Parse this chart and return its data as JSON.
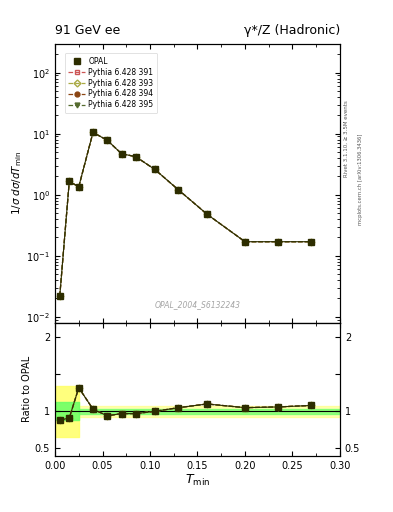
{
  "title_left": "91 GeV ee",
  "title_right": "γ*/Z (Hadronic)",
  "ylabel_main": "1/σ dσ/dT_{min}",
  "ylabel_ratio": "Ratio to OPAL",
  "xlabel": "T_{min}",
  "watermark": "OPAL_2004_S6132243",
  "right_label_top": "Rivet 3.1.10, ≥ 3.5M events",
  "right_label_bot": "mcplots.cern.ch [arXiv:1306.3436]",
  "x_data": [
    0.005,
    0.015,
    0.025,
    0.04,
    0.055,
    0.07,
    0.085,
    0.105,
    0.13,
    0.16,
    0.2,
    0.235,
    0.27
  ],
  "y_opal": [
    0.022,
    1.65,
    1.35,
    10.5,
    7.8,
    4.7,
    4.2,
    2.6,
    1.2,
    0.48,
    0.17,
    0.17,
    0.17
  ],
  "ratio_y": [
    0.88,
    0.91,
    1.32,
    1.03,
    0.94,
    0.97,
    0.97,
    1.0,
    1.05,
    1.1,
    1.05,
    1.06,
    1.08
  ],
  "opal_color": "#2d2d00",
  "mc1_color": "#cc5555",
  "mc2_color": "#aaaa44",
  "mc3_color": "#8B4513",
  "mc4_color": "#556B2F",
  "bg_color": "#ffffff",
  "band_yellow": "#ffff66",
  "band_green": "#66ff66",
  "xlim": [
    0.0,
    0.3
  ],
  "ylim_main": [
    0.008,
    300
  ],
  "ylim_ratio": [
    0.4,
    2.2
  ],
  "legend_labels": [
    "OPAL",
    "Pythia 6.428 391",
    "Pythia 6.428 393",
    "Pythia 6.428 394",
    "Pythia 6.428 395"
  ]
}
